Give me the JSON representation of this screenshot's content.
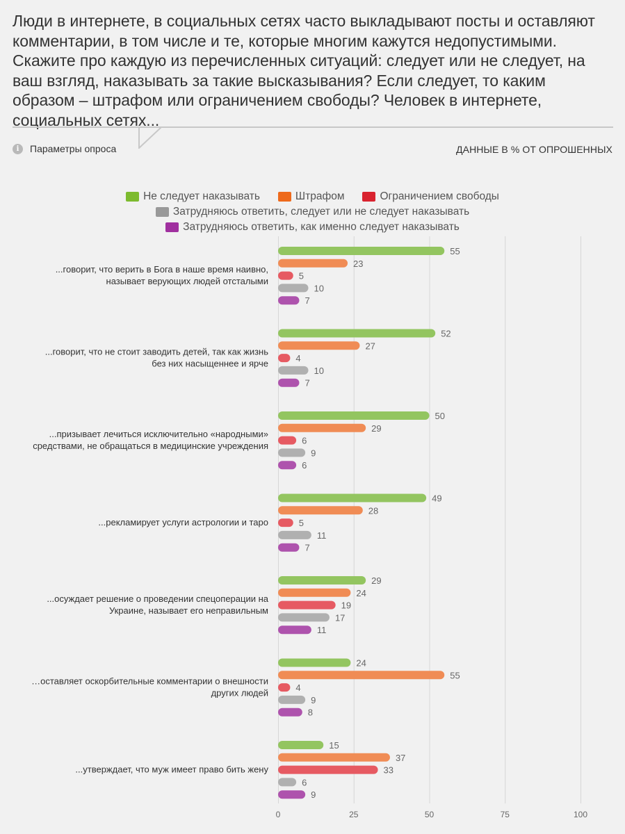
{
  "header": {
    "question": "Люди в интернете, в социальных сетях часто выкладывают посты и оставляют комментарии, в том числе и те, которые многим кажутся недопустимыми. Скажите про каждую из перечисленных ситуаций: следует или не следует, на ваш взгляд, наказывать за такие высказывания? Если следует, то каким образом – штрафом или ограничением свободы? Человек в интернете, социальных сетях...",
    "params_label": "Параметры опроса",
    "info_icon_text": "i",
    "units_label": "ДАННЫЕ В % ОТ ОПРОШЕННЫХ"
  },
  "chart_data": {
    "type": "bar",
    "orientation": "horizontal",
    "categories": [
      [
        "...говорит, что верить в Бога в наше время наивно,",
        "называет верующих людей отсталыми"
      ],
      [
        "...говорит, что не стоит заводить детей, так как жизнь",
        "без них насыщеннее и ярче"
      ],
      [
        "...призывает лечиться исключительно «народными»",
        "средствами, не обращаться в медицинские учреждения"
      ],
      [
        "...рекламирует услуги астрологии и таро"
      ],
      [
        "...осуждает решение о проведении спецоперации на",
        "Украине, называет его неправильным"
      ],
      [
        "…оставляет оскорбительные комментарии о внешности",
        "других людей"
      ],
      [
        "...утверждает, что муж имеет право бить жену"
      ]
    ],
    "series": [
      {
        "name": "Не следует наказывать",
        "legend_color": "#7dbb2f",
        "bar_color": "#93c560",
        "values": [
          55,
          52,
          50,
          49,
          29,
          24,
          15
        ]
      },
      {
        "name": "Штрафом",
        "legend_color": "#ee6a1c",
        "bar_color": "#f08c55",
        "values": [
          23,
          27,
          29,
          28,
          24,
          55,
          37
        ]
      },
      {
        "name": "Ограничением свободы",
        "legend_color": "#d9232f",
        "bar_color": "#e65a62",
        "values": [
          5,
          4,
          6,
          5,
          19,
          4,
          33
        ]
      },
      {
        "name": "Затрудняюсь ответить, следует или не следует наказывать",
        "legend_color": "#999999",
        "bar_color": "#b0b0b0",
        "values": [
          10,
          10,
          9,
          11,
          17,
          9,
          6
        ]
      },
      {
        "name": "Затрудняюсь ответить, как именно следует наказывать",
        "legend_color": "#a0309f",
        "bar_color": "#ae53ad",
        "values": [
          7,
          7,
          6,
          7,
          11,
          8,
          9
        ]
      }
    ],
    "xlim": [
      0,
      100
    ],
    "xticks": [
      0,
      25,
      50,
      75,
      100
    ],
    "legend_position": "top-center",
    "grid": true
  }
}
